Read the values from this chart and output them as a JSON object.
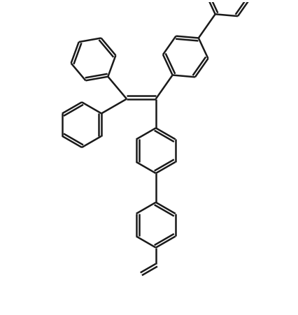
{
  "background_color": "#ffffff",
  "line_color": "#1a1a1a",
  "line_width": 1.8,
  "fig_width": 4.27,
  "fig_height": 4.51,
  "dpi": 100
}
